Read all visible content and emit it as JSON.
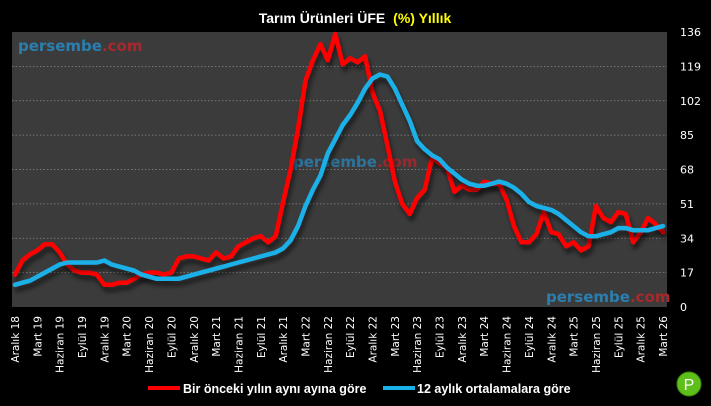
{
  "chart_data": {
    "type": "line",
    "title_main": "Tarım Ürünleri ÜFE",
    "title_highlight": "(%) Yıllık",
    "xlabel": "",
    "ylabel": "",
    "ylim": [
      0,
      136
    ],
    "yticks": [
      0,
      17,
      34,
      51,
      68,
      85,
      102,
      119,
      136
    ],
    "grid": true,
    "legend_position": "bottom",
    "x_start": "Aralık 18",
    "x_frequency": "monthly",
    "xtick_labels": [
      "Aralık 18",
      "Mart 19",
      "Haziran 19",
      "Eylül 19",
      "Aralık 19",
      "Mart 20",
      "Haziran 20",
      "Eylül 20",
      "Aralık 20",
      "Mart 21",
      "Haziran 21",
      "Eylül 21",
      "Aralık 21",
      "Mart 22",
      "Haziran 22",
      "Eylül 22",
      "Aralık 22",
      "Mart 23",
      "Haziran 23",
      "Eylül 23",
      "Aralık 23",
      "Mart 24",
      "Haziran 24",
      "Eylül 24",
      "Aralık 24",
      "Mart 25",
      "Haziran 25",
      "Eylül 25",
      "Aralık 25",
      "Mart 26"
    ],
    "series": [
      {
        "name": "Bir önceki yılın aynı ayına göre",
        "color": "#ff0000",
        "values": [
          16,
          23,
          26,
          28,
          31,
          31,
          27,
          21,
          18,
          17,
          17,
          16,
          11,
          11,
          12,
          12,
          14,
          16,
          17,
          17,
          16,
          17,
          24,
          25,
          25,
          24,
          23,
          27,
          24,
          25,
          30,
          32,
          34,
          35,
          32,
          35,
          52,
          68,
          88,
          112,
          122,
          130,
          122,
          135,
          120,
          123,
          121,
          124,
          106,
          97,
          80,
          62,
          51,
          46,
          54,
          58,
          74,
          71,
          69,
          57,
          60,
          58,
          58,
          62,
          61,
          61,
          53,
          40,
          32,
          32,
          36,
          47,
          37,
          36,
          30,
          32,
          28,
          30,
          50,
          44,
          42,
          47,
          46,
          32,
          37,
          44,
          41,
          37
        ]
      },
      {
        "name": "12 aylık ortalamalara göre",
        "color": "#1ab0e8",
        "values": [
          11,
          12,
          13,
          15,
          17,
          19,
          21,
          22,
          22,
          22,
          22,
          22,
          23,
          21,
          20,
          19,
          18,
          16,
          15,
          14,
          14,
          14,
          14,
          15,
          16,
          17,
          18,
          19,
          20,
          21,
          22,
          23,
          24,
          25,
          26,
          27,
          29,
          33,
          40,
          50,
          58,
          65,
          76,
          83,
          90,
          95,
          101,
          108,
          113,
          115,
          114,
          108,
          100,
          92,
          82,
          78,
          75,
          73,
          69,
          66,
          63,
          61,
          60,
          60,
          61,
          62,
          61,
          59,
          56,
          52,
          50,
          49,
          48,
          46,
          43,
          40,
          37,
          35,
          35,
          36,
          37,
          39,
          39,
          38,
          38,
          38,
          39,
          40
        ]
      }
    ]
  },
  "watermark": {
    "part1": "persembe",
    "part2": ".com"
  },
  "logo_letter": "P"
}
